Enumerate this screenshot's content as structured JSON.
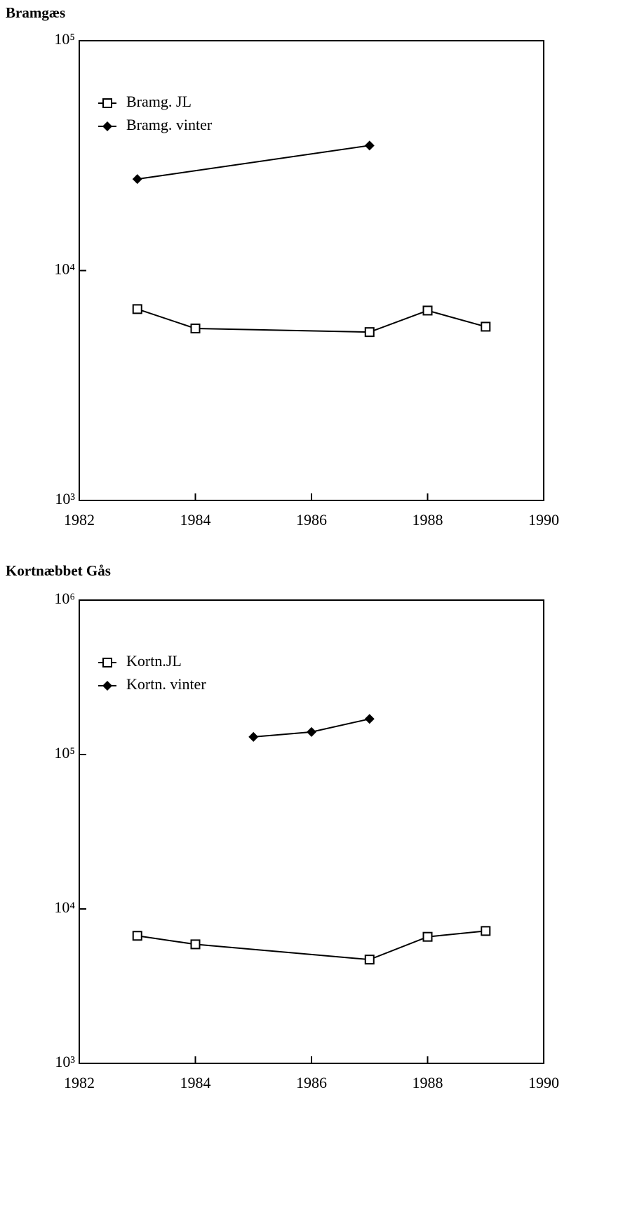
{
  "chart_data": [
    {
      "type": "line",
      "title": "Bramgæs",
      "x": [
        1983,
        1984,
        1987,
        1988,
        1989
      ],
      "series": [
        {
          "name": "Bramg. JL",
          "color": "#000000",
          "marker": "square",
          "values": [
            6800,
            5600,
            5400,
            6700,
            5700
          ]
        },
        {
          "name": "Bramg. vinter",
          "color": "#000000",
          "marker": "diamond",
          "values": [
            25000,
            null,
            35000,
            null,
            null
          ]
        }
      ],
      "xlim": [
        1982,
        1990
      ],
      "xticks": [
        1982,
        1984,
        1986,
        1988,
        1990
      ],
      "ylim": [
        1000,
        100000
      ],
      "log_scale": true,
      "yticks": [
        {
          "value": 1000,
          "label": "10³"
        },
        {
          "value": 10000,
          "label": "10⁴"
        },
        {
          "value": 100000,
          "label": "10⁵"
        }
      ],
      "legend": "upper left"
    },
    {
      "type": "line",
      "title": "Kortnæbbet Gås",
      "x": [
        1983,
        1984,
        1985,
        1986,
        1987,
        1988,
        1989
      ],
      "series": [
        {
          "name": "Kortn.JL",
          "color": "#000000",
          "marker": "square",
          "values": [
            6700,
            5900,
            null,
            null,
            4700,
            6600,
            7200
          ]
        },
        {
          "name": "Kortn. vinter",
          "color": "#000000",
          "marker": "diamond",
          "values": [
            null,
            null,
            130000,
            140000,
            170000,
            null,
            null
          ]
        }
      ],
      "xlim": [
        1982,
        1990
      ],
      "xticks": [
        1982,
        1984,
        1986,
        1988,
        1990
      ],
      "ylim": [
        1000,
        1000000
      ],
      "log_scale": true,
      "yticks": [
        {
          "value": 1000,
          "label": "10³"
        },
        {
          "value": 10000,
          "label": "10⁴"
        },
        {
          "value": 100000,
          "label": "10⁵"
        },
        {
          "value": 1000000,
          "label": "10⁶"
        }
      ],
      "legend": "upper left"
    }
  ]
}
